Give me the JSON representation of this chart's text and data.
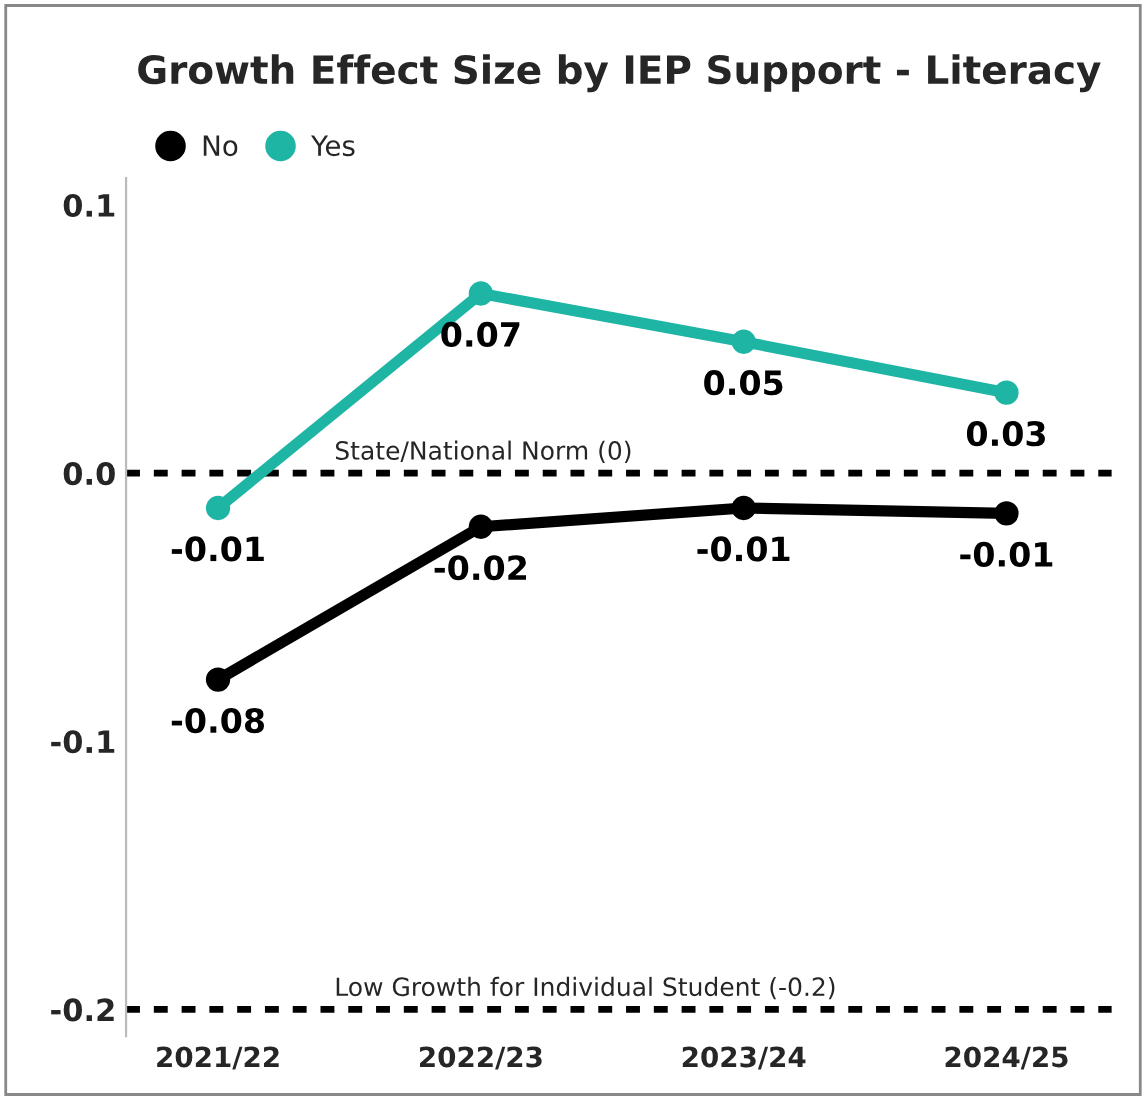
{
  "chart_data": {
    "type": "line",
    "title": "Growth Effect Size by IEP Support - Literacy",
    "categories": [
      "2021/22",
      "2022/23",
      "2023/24",
      "2024/25"
    ],
    "series": [
      {
        "name": "No",
        "color": "#000000",
        "values": [
          -0.077,
          -0.02,
          -0.013,
          -0.015
        ],
        "value_labels": [
          "-0.08",
          "-0.02",
          "-0.01",
          "-0.01"
        ]
      },
      {
        "name": "Yes",
        "color": "#1fb5a5",
        "values": [
          -0.013,
          0.067,
          0.049,
          0.03
        ],
        "value_labels": [
          "-0.01",
          "0.07",
          "0.05",
          "0.03"
        ]
      }
    ],
    "ylim": [
      -0.21,
      0.11
    ],
    "yticks": [
      {
        "value": 0.1,
        "label": "0.1"
      },
      {
        "value": 0.0,
        "label": "0.0"
      },
      {
        "value": -0.1,
        "label": "-0.1"
      },
      {
        "value": -0.2,
        "label": "-0.2"
      }
    ],
    "ref_lines": [
      {
        "axis": "y",
        "value": 0,
        "label": "State/National Norm (0)",
        "color": "#000000",
        "line_style": "dashed"
      },
      {
        "axis": "y",
        "value": -0.2,
        "label": "Low Growth for Individual Student (-0.2)",
        "color": "#000000",
        "line_style": "dashed"
      }
    ],
    "grid": false,
    "legend": "top left",
    "marker": "circle",
    "line_style": "solid"
  }
}
